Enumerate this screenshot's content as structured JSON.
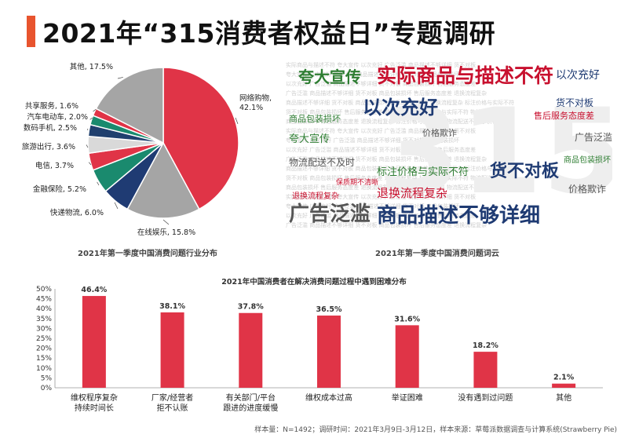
{
  "page": {
    "title": "2021年“315消费者权益日”专题调研",
    "footer": "样本量：N=1492；调研时间：2021年3月9日-3月12日，样本来源：草莓派数据调查与计算系统(Strawberry Pie)"
  },
  "colors": {
    "accent": "#e8542e",
    "red": "#e03447",
    "gray": "#a5a5a5",
    "navy": "#1f3b73",
    "teal": "#1a8a6e",
    "lightgray": "#d9d9d9",
    "darkblue": "#20406e"
  },
  "wordcloud": {
    "caption": "2021年第一季度中国消费问题词云",
    "words": [
      "实际商品与描述不符",
      "夸大宣传",
      "以次充好",
      "广告泛滥",
      "商品描述不够详细",
      "货不对板",
      "商品包装损坏",
      "售后服务态度差",
      "退换流程复杂",
      "标注价格与实际不符",
      "物流配送不及时",
      "价格欺诈",
      "保质期不清晰",
      "以次充好",
      "货不对板",
      "广告泛滥",
      "价格欺诈",
      "夸大宣传",
      "商品包装损坏",
      "退换流程复杂"
    ]
  },
  "chart_data": [
    {
      "type": "pie",
      "title": "2021年第一季度中国消费问题行业分布",
      "slices": [
        {
          "label": "网络购物",
          "value": 42.1,
          "display": "网络购物, 42.1%",
          "color": "#e03447"
        },
        {
          "label": "在线娱乐",
          "value": 15.8,
          "display": "在线娱乐, 15.8%",
          "color": "#a5a5a5"
        },
        {
          "label": "快递物流",
          "value": 6.0,
          "display": "快递物流, 6.0%",
          "color": "#1f3b73"
        },
        {
          "label": "金融保险",
          "value": 5.2,
          "display": "金融保险, 5.2%",
          "color": "#1a8a6e"
        },
        {
          "label": "电信",
          "value": 3.7,
          "display": "电信, 3.7%",
          "color": "#e03447"
        },
        {
          "label": "旅游出行",
          "value": 3.6,
          "display": "旅游出行, 3.6%",
          "color": "#d9d9d9"
        },
        {
          "label": "数码手机",
          "value": 2.5,
          "display": "数码手机, 2.5%",
          "color": "#20406e"
        },
        {
          "label": "汽车电动车",
          "value": 2.0,
          "display": "汽车电动车, 2.0%",
          "color": "#1a8a6e"
        },
        {
          "label": "共享服务",
          "value": 1.6,
          "display": "共享服务, 1.6%",
          "color": "#e03447"
        },
        {
          "label": "其他",
          "value": 17.5,
          "display": "其他, 17.5%",
          "color": "#a5a5a5"
        }
      ]
    },
    {
      "type": "bar",
      "title": "2021年中国消费者在解决消费问题过程中遇到困难分布",
      "categories": [
        [
          "维权程序复杂",
          "持续时间长"
        ],
        [
          "厂家/经营者",
          "拒不认账"
        ],
        [
          "有关部门/平台",
          "跟进的进度缓慢"
        ],
        [
          "维权成本过高"
        ],
        [
          "举证困难"
        ],
        [
          "没有遇到过问题"
        ],
        [
          "其他"
        ]
      ],
      "values": [
        46.4,
        38.1,
        37.8,
        36.5,
        31.6,
        18.2,
        2.1
      ],
      "value_labels": [
        "46.4%",
        "38.1%",
        "37.8%",
        "36.5%",
        "31.6%",
        "18.2%",
        "2.1%"
      ],
      "ylim": [
        0,
        50
      ],
      "yticks": [
        "0%",
        "5%",
        "10%",
        "15%",
        "20%",
        "25%",
        "30%",
        "35%",
        "40%",
        "45%",
        "50%"
      ],
      "bar_color": "#e03447",
      "grid": false
    }
  ]
}
